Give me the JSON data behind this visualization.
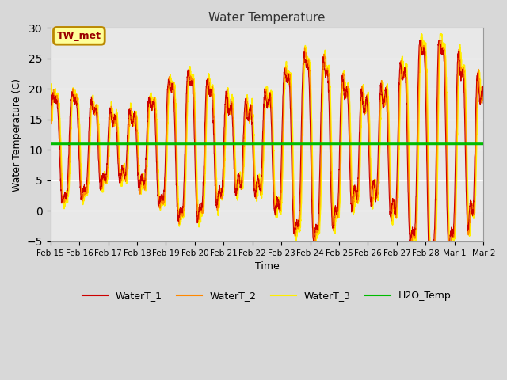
{
  "title": "Water Temperature",
  "xlabel": "Time",
  "ylabel": "Water Temperature (C)",
  "ylim": [
    -5,
    30
  ],
  "yticks": [
    -5,
    0,
    5,
    10,
    15,
    20,
    25,
    30
  ],
  "figure_bg": "#d8d8d8",
  "plot_bg": "#e8e8e8",
  "h2o_temp_value": 11.0,
  "annotation_text": "TW_met",
  "annotation_bg": "#ffff99",
  "annotation_border": "#bb8800",
  "annotation_text_color": "#990000",
  "line_colors": {
    "WaterT_1": "#cc0000",
    "WaterT_2": "#ff8800",
    "WaterT_3": "#ffee00",
    "H2O_Temp": "#00bb00"
  },
  "line_widths": {
    "WaterT_1": 0.8,
    "WaterT_2": 1.0,
    "WaterT_3": 1.2,
    "H2O_Temp": 2.2
  },
  "x_tick_labels": [
    "Feb 15",
    "Feb 16",
    "Feb 17",
    "Feb 18",
    "Feb 19",
    "Feb 20",
    "Feb 21",
    "Feb 22",
    "Feb 23",
    "Feb 24",
    "Feb 25",
    "Feb 26",
    "Feb 27",
    "Feb 28",
    "Mar 1",
    "Mar 2"
  ],
  "n_days": 16,
  "seed": 1234
}
